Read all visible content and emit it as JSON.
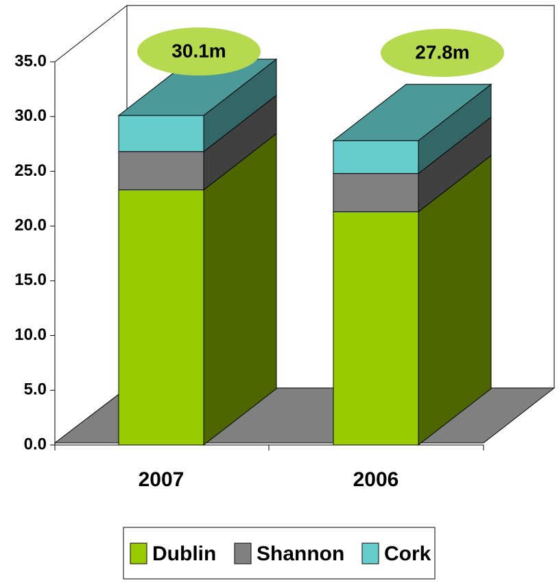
{
  "chart_data": {
    "type": "bar3d_stacked",
    "categories": [
      "2007",
      "2006"
    ],
    "series": [
      {
        "name": "Dublin",
        "color": "#99cc00",
        "side_color": "#4d6600",
        "values": [
          23.3,
          21.3
        ]
      },
      {
        "name": "Shannon",
        "color": "#808080",
        "side_color": "#404040",
        "values": [
          3.5,
          3.5
        ]
      },
      {
        "name": "Cork",
        "color": "#66cccc",
        "side_color": "#336666",
        "top_color": "#4c9999",
        "values": [
          3.3,
          3.0
        ]
      }
    ],
    "annotations": [
      "30.1m",
      "27.8m"
    ],
    "ylim": [
      0,
      35
    ],
    "yticks": [
      {
        "value": 0,
        "label": "0.0"
      },
      {
        "value": 5,
        "label": "5.0"
      },
      {
        "value": 10,
        "label": "10.0"
      },
      {
        "value": 15,
        "label": "15.0"
      },
      {
        "value": 20,
        "label": "20.0"
      },
      {
        "value": 25,
        "label": "25.0"
      },
      {
        "value": 30,
        "label": "30.0"
      },
      {
        "value": 35,
        "label": "35.0"
      }
    ]
  }
}
